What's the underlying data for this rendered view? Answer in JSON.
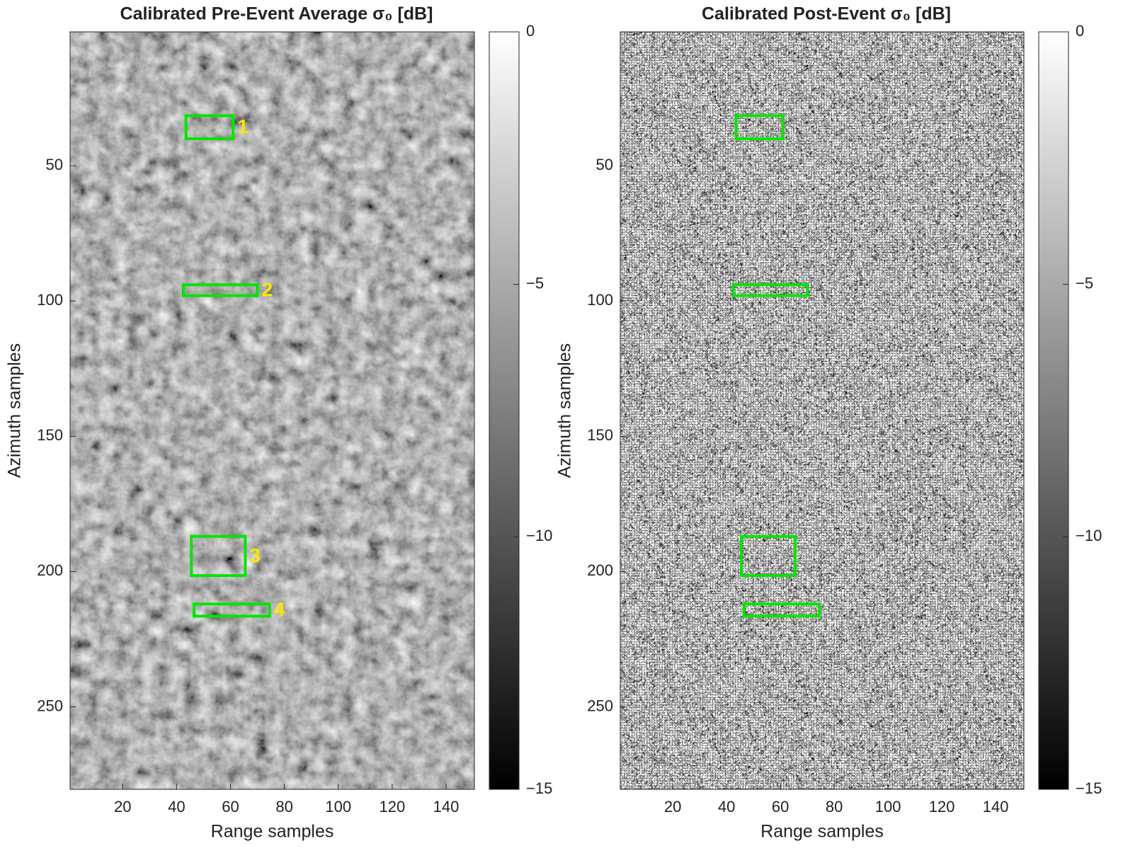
{
  "chart_data": [
    {
      "type": "image",
      "title": "Calibrated  Pre-Event  Average σ₀  [dB]",
      "xlabel": "Range samples",
      "ylabel": "Azimuth samples",
      "xlim": [
        0.5,
        150.5
      ],
      "ylim": [
        0.5,
        280.5
      ],
      "xticks": [
        20,
        40,
        60,
        80,
        100,
        120,
        140
      ],
      "yticks": [
        50,
        100,
        150,
        200,
        250
      ],
      "colormap": "gray",
      "clim": [
        -15,
        0
      ],
      "colorbar_ticks": [
        {
          "value": -15,
          "label": "−15"
        },
        {
          "value": -10,
          "label": "−10"
        },
        {
          "value": -5,
          "label": "−5"
        },
        0
      ],
      "box_color": "#00e600",
      "label_color": "#ffe600",
      "boxes": [
        {
          "x": [
            43.5,
            61
          ],
          "y": [
            31.5,
            40
          ],
          "label": "1"
        },
        {
          "x": [
            42.5,
            70
          ],
          "y": [
            94,
            98
          ],
          "label": "2"
        },
        {
          "x": [
            45.5,
            65.5
          ],
          "y": [
            187,
            201.5
          ],
          "label": "3"
        },
        {
          "x": [
            46.5,
            74.5
          ],
          "y": [
            212,
            216.5
          ],
          "label": "4"
        }
      ]
    },
    {
      "type": "image",
      "title": "Calibrated  Post-Event  σ₀  [dB]",
      "xlabel": "Range samples",
      "ylabel": "Azimuth samples",
      "xlim": [
        0.5,
        150.5
      ],
      "ylim": [
        0.5,
        280.5
      ],
      "xticks": [
        20,
        40,
        60,
        80,
        100,
        120,
        140
      ],
      "yticks": [
        50,
        100,
        150,
        200,
        250
      ],
      "colormap": "gray",
      "clim": [
        -15,
        0
      ],
      "colorbar_ticks": [
        {
          "value": -15,
          "label": "−15"
        },
        {
          "value": -10,
          "label": "−10"
        },
        {
          "value": -5,
          "label": "−5"
        },
        0
      ],
      "box_color": "#00e600",
      "boxes": [
        {
          "x": [
            43.5,
            61
          ],
          "y": [
            31.5,
            40
          ]
        },
        {
          "x": [
            42.5,
            70
          ],
          "y": [
            94,
            98
          ]
        },
        {
          "x": [
            45.5,
            65.5
          ],
          "y": [
            187,
            201.5
          ]
        },
        {
          "x": [
            46.5,
            74.5
          ],
          "y": [
            212,
            216.5
          ]
        }
      ]
    }
  ]
}
